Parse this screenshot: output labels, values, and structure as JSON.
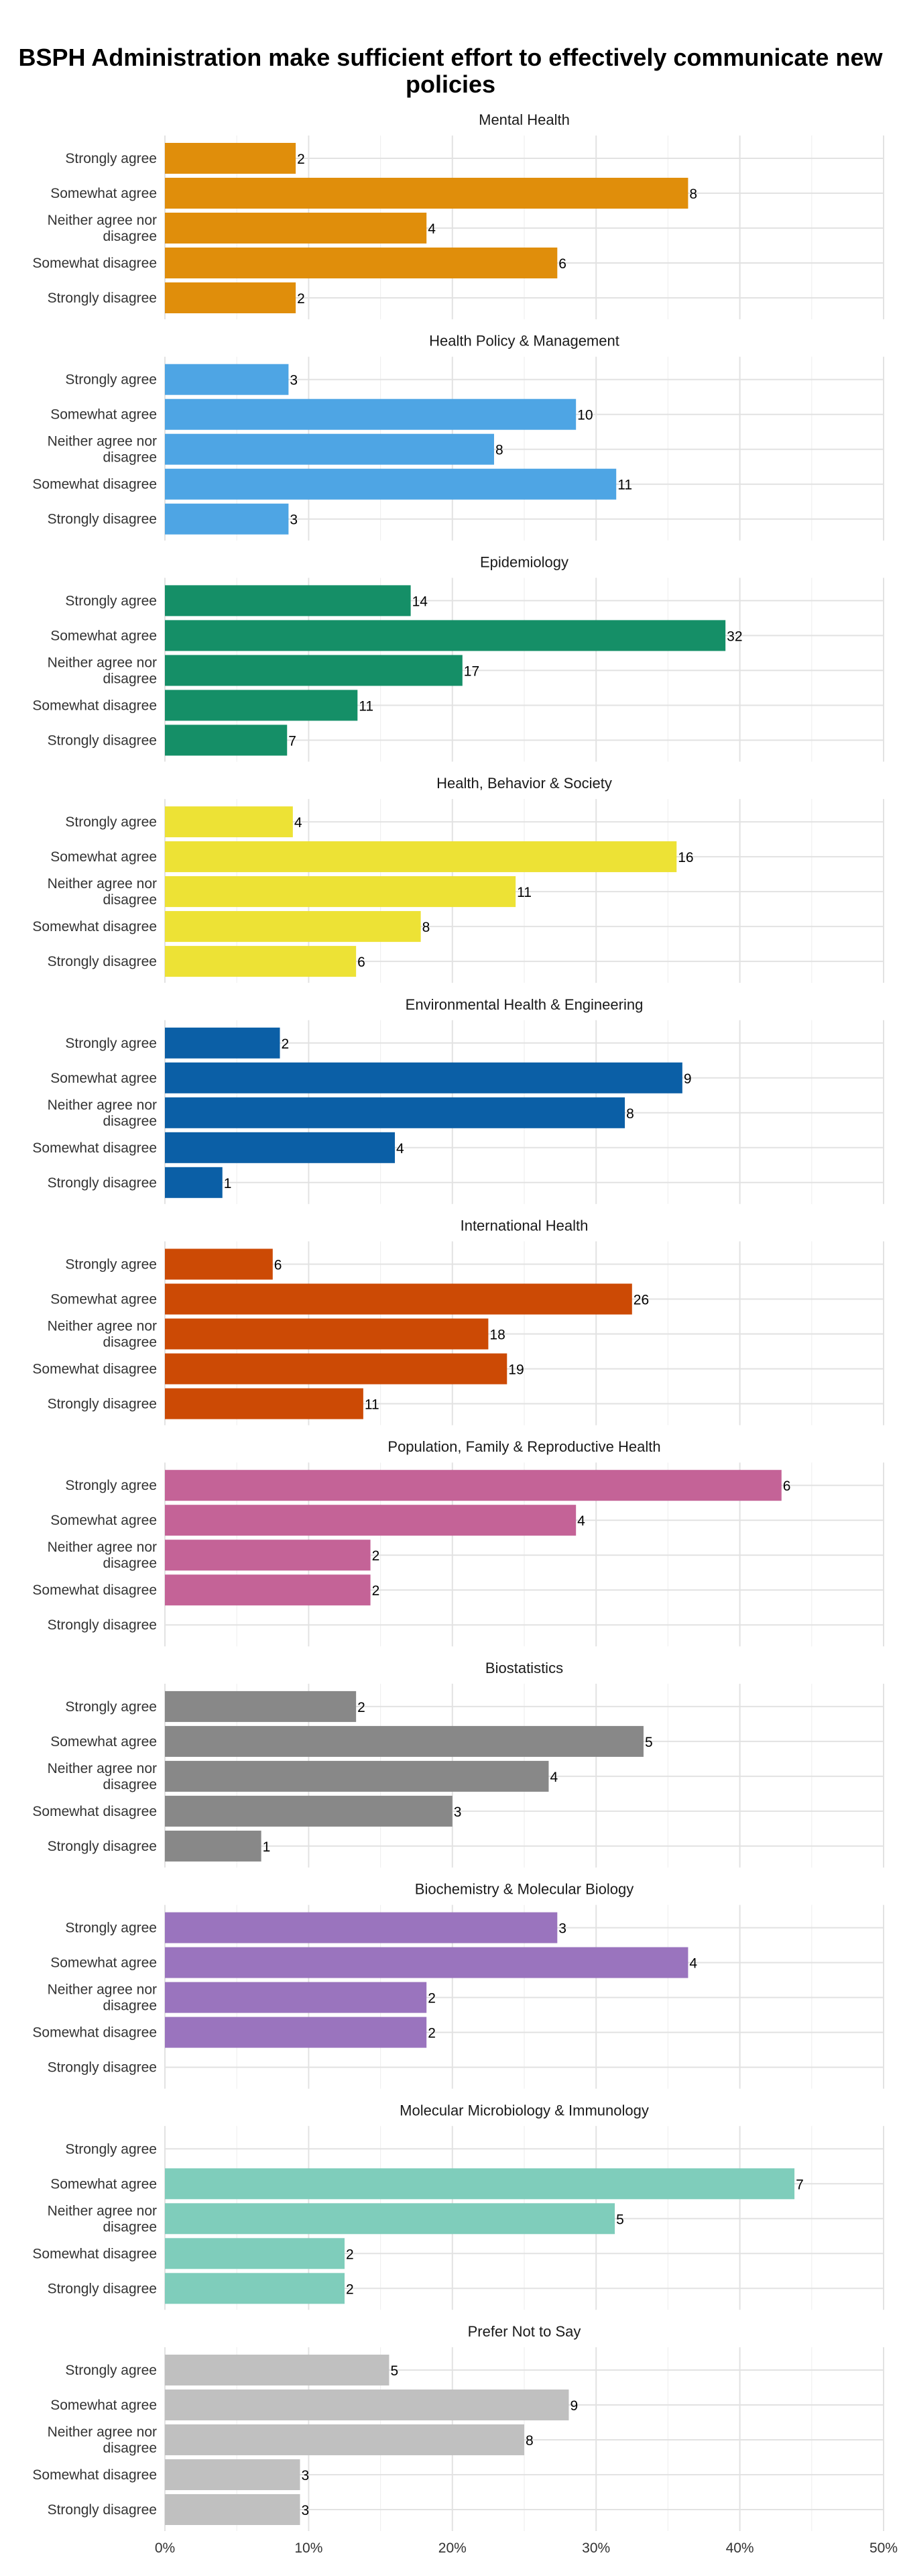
{
  "title": "BSPH Administration make sufficient effort to effectively communicate new policies",
  "chart_data": {
    "type": "bar",
    "orientation": "horizontal",
    "title": "BSPH Administration make sufficient effort to effectively communicate new policies",
    "xlabel": "",
    "ylabel": "",
    "x_ticks": [
      "0%",
      "10%",
      "20%",
      "30%",
      "40%",
      "50%"
    ],
    "xlim": [
      0,
      50
    ],
    "grid": true,
    "categories": [
      "Strongly agree",
      "Somewhat agree",
      "Neither agree nor disagree",
      "Somewhat disagree",
      "Strongly disagree"
    ],
    "value_unit": "percent",
    "panels": [
      {
        "name": "Mental Health",
        "color": "#E08E0B",
        "percent": [
          9.1,
          36.4,
          18.2,
          27.3,
          9.1
        ],
        "counts": [
          "2",
          "8",
          "4",
          "6",
          "2"
        ]
      },
      {
        "name": "Health Policy & Management",
        "color": "#4EA5E4",
        "percent": [
          8.6,
          28.6,
          22.9,
          31.4,
          8.6
        ],
        "counts": [
          "3",
          "10",
          "8",
          "11",
          "3"
        ]
      },
      {
        "name": "Epidemiology",
        "color": "#158F67",
        "percent": [
          17.1,
          39.0,
          20.7,
          13.4,
          8.5
        ],
        "counts": [
          "14",
          "32",
          "17",
          "11",
          "7"
        ]
      },
      {
        "name": "Health, Behavior & Society",
        "color": "#EDE235",
        "percent": [
          8.9,
          35.6,
          24.4,
          17.8,
          13.3
        ],
        "counts": [
          "4",
          "16",
          "11",
          "8",
          "6"
        ]
      },
      {
        "name": "Environmental Health & Engineering",
        "color": "#0B5FA6",
        "percent": [
          8.0,
          36.0,
          32.0,
          16.0,
          4.0
        ],
        "counts": [
          "2",
          "9",
          "8",
          "4",
          "1"
        ]
      },
      {
        "name": "International Health",
        "color": "#CC4A05",
        "percent": [
          7.5,
          32.5,
          22.5,
          23.8,
          13.8
        ],
        "counts": [
          "6",
          "26",
          "18",
          "19",
          "11"
        ]
      },
      {
        "name": "Population, Family & Reproductive Health",
        "color": "#C46397",
        "percent": [
          42.9,
          28.6,
          14.3,
          14.3,
          0
        ],
        "counts": [
          "6",
          "4",
          "2",
          "2",
          ""
        ]
      },
      {
        "name": "Biostatistics",
        "color": "#888888",
        "percent": [
          13.3,
          33.3,
          26.7,
          20.0,
          6.7
        ],
        "counts": [
          "2",
          "5",
          "4",
          "3",
          "1"
        ]
      },
      {
        "name": "Biochemistry & Molecular Biology",
        "color": "#9A74BE",
        "percent": [
          27.3,
          36.4,
          18.2,
          18.2,
          0
        ],
        "counts": [
          "3",
          "4",
          "2",
          "2",
          ""
        ]
      },
      {
        "name": "Molecular Microbiology & Immunology",
        "color": "#7FCDBB",
        "percent": [
          0,
          43.8,
          31.3,
          12.5,
          12.5
        ],
        "counts": [
          "",
          "7",
          "5",
          "2",
          "2"
        ]
      },
      {
        "name": "Prefer Not to Say",
        "color": "#C0C0C0",
        "percent": [
          15.6,
          28.1,
          25.0,
          9.4,
          9.4
        ],
        "counts": [
          "5",
          "9",
          "8",
          "3",
          "3"
        ]
      }
    ]
  }
}
